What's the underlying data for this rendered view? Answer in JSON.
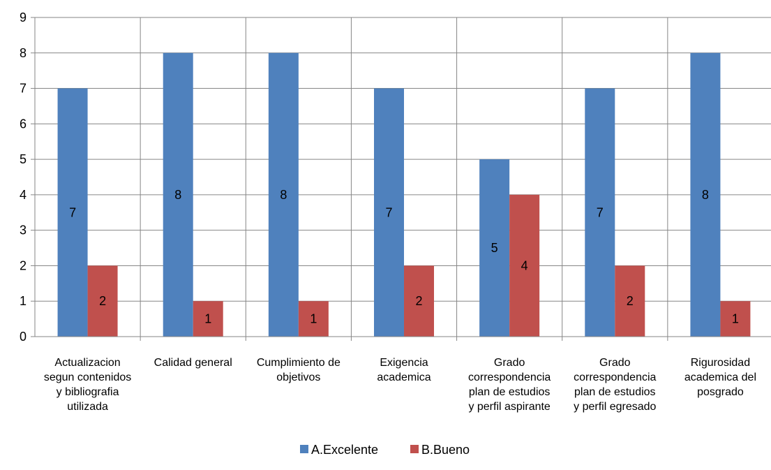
{
  "chart_data": {
    "type": "bar",
    "title": "",
    "xlabel": "",
    "ylabel": "",
    "ylim": [
      0,
      9
    ],
    "yticks": [
      0,
      1,
      2,
      3,
      4,
      5,
      6,
      7,
      8,
      9
    ],
    "grid": true,
    "legend_position": "bottom",
    "categories": [
      [
        "Actualizacion",
        "segun contenidos",
        "y bibliografia",
        "utilizada"
      ],
      [
        "Calidad general"
      ],
      [
        "Cumplimiento de",
        "objetivos"
      ],
      [
        "Exigencia",
        "academica"
      ],
      [
        "Grado",
        "correspondencia",
        "plan de estudios",
        "y perfil aspirante"
      ],
      [
        "Grado",
        "correspondencia",
        "plan de estudios",
        "y perfil egresado"
      ],
      [
        "Rigurosidad",
        "academica del",
        "posgrado"
      ]
    ],
    "series": [
      {
        "name": "A.Excelente",
        "color": "#4F81BD",
        "values": [
          7,
          8,
          8,
          7,
          5,
          7,
          8
        ]
      },
      {
        "name": "B.Bueno",
        "color": "#C0504D",
        "values": [
          2,
          1,
          1,
          2,
          4,
          2,
          1
        ]
      }
    ]
  }
}
